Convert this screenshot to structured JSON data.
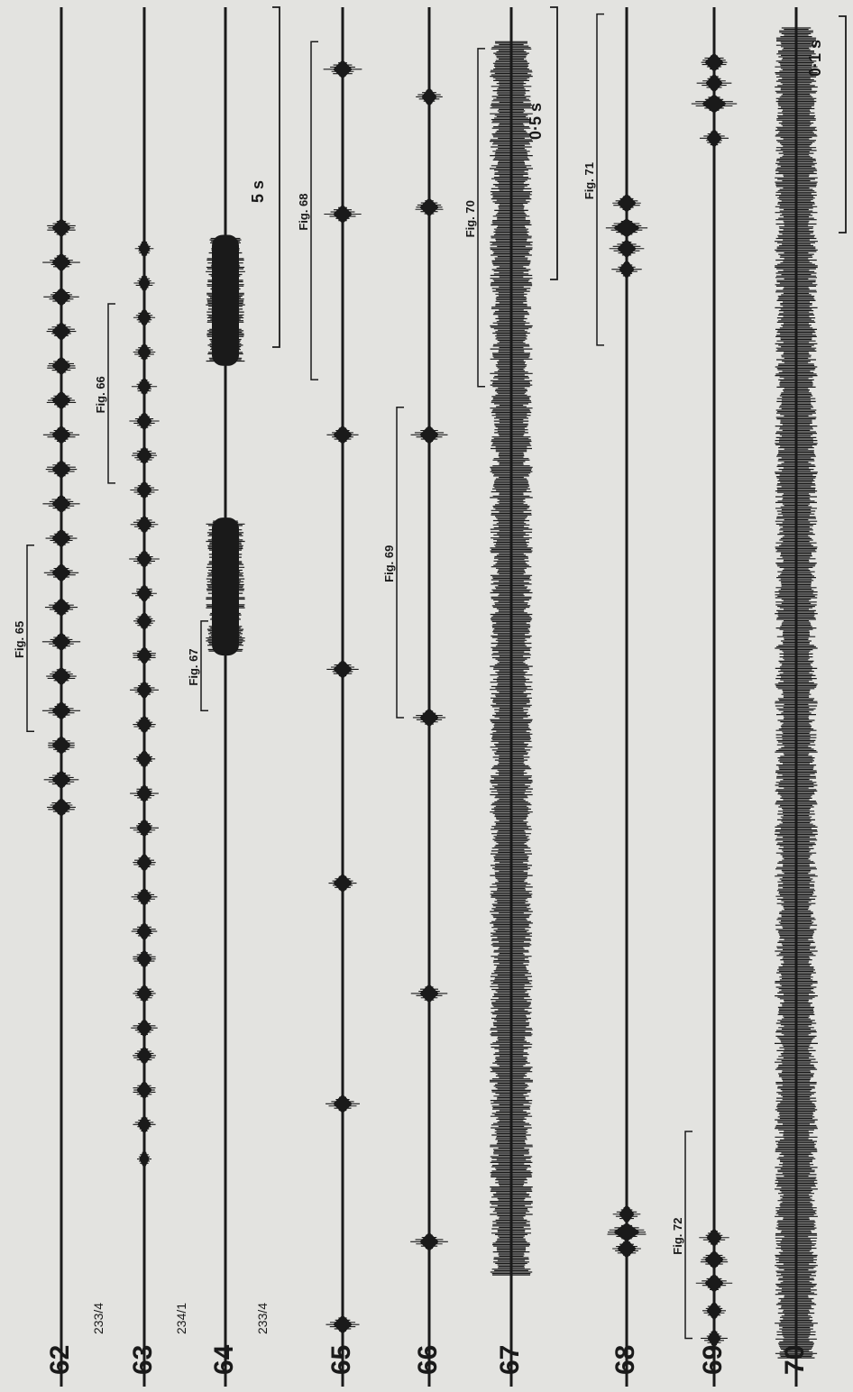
{
  "traces": [
    {
      "figure_number": "62",
      "specimen": "233/4",
      "type": "pulses",
      "pulses": [
        {
          "at": 0.42,
          "amp": 1
        },
        {
          "at": 0.44,
          "amp": 1
        },
        {
          "at": 0.465,
          "amp": 1
        },
        {
          "at": 0.49,
          "amp": 1
        },
        {
          "at": 0.515,
          "amp": 1
        },
        {
          "at": 0.54,
          "amp": 1
        },
        {
          "at": 0.565,
          "amp": 1
        },
        {
          "at": 0.59,
          "amp": 1
        },
        {
          "at": 0.615,
          "amp": 1
        },
        {
          "at": 0.64,
          "amp": 1
        },
        {
          "at": 0.665,
          "amp": 1
        },
        {
          "at": 0.69,
          "amp": 1
        },
        {
          "at": 0.715,
          "amp": 1
        },
        {
          "at": 0.74,
          "amp": 1
        },
        {
          "at": 0.765,
          "amp": 1
        },
        {
          "at": 0.79,
          "amp": 1
        },
        {
          "at": 0.815,
          "amp": 1
        },
        {
          "at": 0.84,
          "amp": 1
        }
      ]
    },
    {
      "figure_number": "63",
      "specimen": "234/1",
      "type": "pulses",
      "pulses": [
        {
          "at": 0.165,
          "amp": 0.5
        },
        {
          "at": 0.19,
          "amp": 0.7
        },
        {
          "at": 0.215,
          "amp": 0.8
        },
        {
          "at": 0.24,
          "amp": 0.8
        },
        {
          "at": 0.26,
          "amp": 0.8
        },
        {
          "at": 0.285,
          "amp": 0.8
        },
        {
          "at": 0.31,
          "amp": 0.8
        },
        {
          "at": 0.33,
          "amp": 0.8
        },
        {
          "at": 0.355,
          "amp": 0.8
        },
        {
          "at": 0.38,
          "amp": 0.8
        },
        {
          "at": 0.405,
          "amp": 0.8
        },
        {
          "at": 0.43,
          "amp": 0.8
        },
        {
          "at": 0.455,
          "amp": 0.8
        },
        {
          "at": 0.48,
          "amp": 0.8
        },
        {
          "at": 0.505,
          "amp": 0.8
        },
        {
          "at": 0.53,
          "amp": 0.8
        },
        {
          "at": 0.555,
          "amp": 0.8
        },
        {
          "at": 0.575,
          "amp": 0.8
        },
        {
          "at": 0.6,
          "amp": 0.8
        },
        {
          "at": 0.625,
          "amp": 0.8
        },
        {
          "at": 0.65,
          "amp": 0.8
        },
        {
          "at": 0.675,
          "amp": 0.8
        },
        {
          "at": 0.7,
          "amp": 0.8
        },
        {
          "at": 0.725,
          "amp": 0.7
        },
        {
          "at": 0.75,
          "amp": 0.7
        },
        {
          "at": 0.775,
          "amp": 0.7
        },
        {
          "at": 0.8,
          "amp": 0.6
        },
        {
          "at": 0.825,
          "amp": 0.6
        }
      ]
    },
    {
      "figure_number": "64",
      "specimen": "233/4",
      "type": "blocks",
      "blocks": [
        {
          "from": 0.53,
          "to": 0.63,
          "amp": 1
        },
        {
          "from": 0.74,
          "to": 0.835,
          "amp": 1
        }
      ]
    },
    {
      "figure_number": "65",
      "specimen": "",
      "type": "pulses",
      "pulses": [
        {
          "at": 0.045,
          "amp": 1
        },
        {
          "at": 0.205,
          "amp": 1
        },
        {
          "at": 0.365,
          "amp": 1
        },
        {
          "at": 0.52,
          "amp": 1
        },
        {
          "at": 0.69,
          "amp": 1
        },
        {
          "at": 0.85,
          "amp": 1
        },
        {
          "at": 0.955,
          "amp": 1
        }
      ]
    },
    {
      "figure_number": "66",
      "specimen": "",
      "type": "pulses",
      "pulses": [
        {
          "at": 0.105,
          "amp": 1
        },
        {
          "at": 0.285,
          "amp": 1
        },
        {
          "at": 0.485,
          "amp": 1
        },
        {
          "at": 0.69,
          "amp": 1
        },
        {
          "at": 0.855,
          "amp": 1
        },
        {
          "at": 0.935,
          "amp": 0.8
        }
      ]
    },
    {
      "figure_number": "67",
      "specimen": "",
      "type": "noise",
      "blocks": [
        {
          "from": 0.08,
          "to": 0.975,
          "amp": 1
        }
      ]
    },
    {
      "figure_number": "68",
      "specimen": "",
      "type": "pulses",
      "pulses": [
        {
          "at": 0.1,
          "amp": 1
        },
        {
          "at": 0.112,
          "amp": 1.4
        },
        {
          "at": 0.125,
          "amp": 0.8
        },
        {
          "at": 0.81,
          "amp": 0.8
        },
        {
          "at": 0.825,
          "amp": 1
        },
        {
          "at": 0.84,
          "amp": 1.4
        },
        {
          "at": 0.858,
          "amp": 1
        }
      ]
    },
    {
      "figure_number": "69",
      "specimen": "",
      "type": "pulses",
      "pulses": [
        {
          "at": 0.035,
          "amp": 0.7
        },
        {
          "at": 0.055,
          "amp": 0.8
        },
        {
          "at": 0.075,
          "amp": 1
        },
        {
          "at": 0.092,
          "amp": 1
        },
        {
          "at": 0.108,
          "amp": 0.8
        },
        {
          "at": 0.905,
          "amp": 0.8
        },
        {
          "at": 0.93,
          "amp": 1.3
        },
        {
          "at": 0.945,
          "amp": 0.9
        },
        {
          "at": 0.96,
          "amp": 1
        }
      ]
    },
    {
      "figure_number": "70",
      "specimen": "",
      "type": "noise",
      "blocks": [
        {
          "from": 0.02,
          "to": 0.985,
          "amp": 1
        }
      ]
    }
  ],
  "brackets": [
    {
      "label": "Fig. 65",
      "from": 0.475,
      "to": 0.61
    },
    {
      "label": "Fig. 66",
      "from": 0.655,
      "to": 0.785
    },
    {
      "label": "Fig. 67",
      "from": 0.49,
      "to": 0.555
    },
    {
      "label": "Fig. 68",
      "from": 0.73,
      "to": 0.975
    },
    {
      "label": "Fig. 69",
      "from": 0.485,
      "to": 0.71
    },
    {
      "label": "Fig. 70",
      "from": 0.725,
      "to": 0.97
    },
    {
      "label": "Fig. 71",
      "from": 0.755,
      "to": 0.995
    },
    {
      "label": "Fig. 72",
      "from": 0.035,
      "to": 0.185
    }
  ],
  "scale_bars": [
    {
      "label": "5 s"
    },
    {
      "label": "0·5 s"
    },
    {
      "label": "0·1 s"
    }
  ]
}
